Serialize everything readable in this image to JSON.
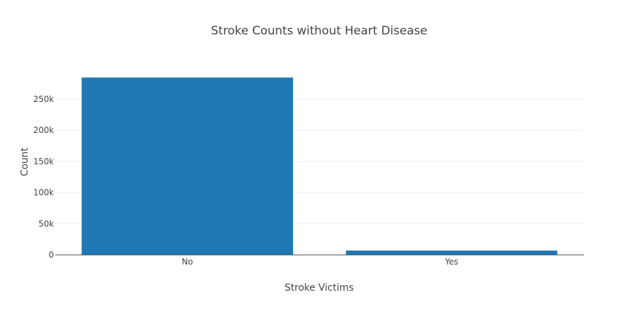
{
  "chart_data": {
    "type": "bar",
    "title": "Stroke Counts without Heart Disease",
    "xlabel": "Stroke Victims",
    "ylabel": "Count",
    "categories": [
      "No",
      "Yes"
    ],
    "values": [
      284800,
      7000
    ],
    "ylim": [
      0,
      300000
    ],
    "yticks": [
      0,
      50000,
      100000,
      150000,
      200000,
      250000
    ],
    "ytick_labels": [
      "0",
      "50k",
      "100k",
      "150k",
      "200k",
      "250k"
    ],
    "grid": true,
    "legend": "none",
    "bar_color": "#1f77b4"
  }
}
